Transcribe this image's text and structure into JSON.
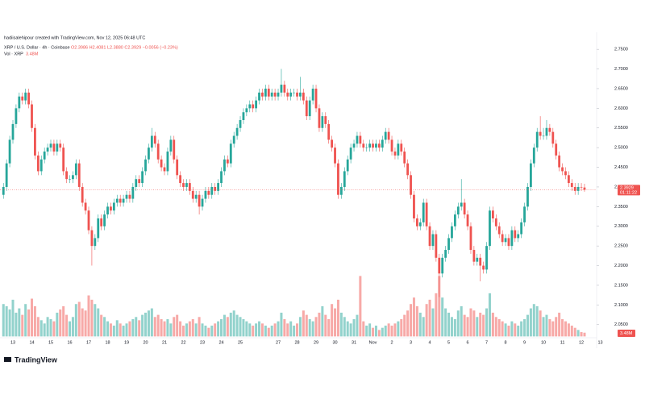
{
  "chart_data": {
    "type": "candlestick",
    "credit": "hadiisalehipour created with TradingView.com, Nov 12, 2025 06:48 UTC",
    "symbol": "XRP / U.S. Dollar · 4h · Coinbase",
    "ohlc_text": "O2.3986 H2.4081 L2.3880 C2.3929 −0.0056 (−0.23%)",
    "volume_title": "Vol · XRP",
    "volume_last_label": "3.48M",
    "last_price_label": "2.3929",
    "countdown": "01:11:22",
    "logo": "TradingView",
    "up_color": "#26a69a",
    "down_color": "#ef5350",
    "grid": false,
    "ylim": [
      2.02,
      2.77
    ],
    "yticks": [
      {
        "value": 2.05,
        "label": "2.0500"
      },
      {
        "value": 2.1,
        "label": "2.1000"
      },
      {
        "value": 2.15,
        "label": "2.1500"
      },
      {
        "value": 2.2,
        "label": "2.2000"
      },
      {
        "value": 2.25,
        "label": "2.2500"
      },
      {
        "value": 2.3,
        "label": "2.3000"
      },
      {
        "value": 2.35,
        "label": "2.3500"
      },
      {
        "value": 2.4,
        "label": "2.4000"
      },
      {
        "value": 2.45,
        "label": "2.4500"
      },
      {
        "value": 2.5,
        "label": "2.5000"
      },
      {
        "value": 2.55,
        "label": "2.5500"
      },
      {
        "value": 2.6,
        "label": "2.6000"
      },
      {
        "value": 2.65,
        "label": "2.6500"
      },
      {
        "value": 2.7,
        "label": "2.7000"
      },
      {
        "value": 2.75,
        "label": "2.7500"
      }
    ],
    "next_day_label": "13",
    "categories": [
      null,
      null,
      null,
      "13",
      null,
      null,
      null,
      null,
      null,
      "14",
      null,
      null,
      null,
      null,
      null,
      "15",
      null,
      null,
      null,
      null,
      null,
      "16",
      null,
      null,
      null,
      null,
      null,
      "17",
      null,
      null,
      null,
      null,
      null,
      "18",
      null,
      null,
      null,
      null,
      null,
      "19",
      null,
      null,
      null,
      null,
      null,
      "20",
      null,
      null,
      null,
      null,
      null,
      "21",
      null,
      null,
      null,
      null,
      null,
      "22",
      null,
      null,
      null,
      null,
      null,
      "23",
      null,
      null,
      null,
      null,
      null,
      "24",
      null,
      null,
      null,
      null,
      null,
      "25",
      null,
      null,
      null,
      null,
      null,
      null,
      null,
      null,
      null,
      null,
      null,
      "27",
      null,
      null,
      null,
      null,
      null,
      "28",
      null,
      null,
      null,
      null,
      null,
      "29",
      null,
      null,
      null,
      null,
      null,
      "30",
      null,
      null,
      null,
      null,
      null,
      "31",
      null,
      null,
      null,
      null,
      null,
      "Nov",
      null,
      null,
      null,
      null,
      null,
      "2",
      null,
      null,
      null,
      null,
      null,
      "3",
      null,
      null,
      null,
      null,
      null,
      "4",
      null,
      null,
      null,
      null,
      null,
      "5",
      null,
      null,
      null,
      null,
      null,
      "6",
      null,
      null,
      null,
      null,
      null,
      "7",
      null,
      null,
      null,
      null,
      null,
      "8",
      null,
      null,
      null,
      null,
      null,
      "9",
      null,
      null,
      null,
      null,
      null,
      "10",
      null,
      null,
      null,
      null,
      null,
      "11",
      null,
      null,
      null,
      null,
      null,
      "12",
      null
    ],
    "open": [
      2.38,
      2.4,
      2.46,
      2.52,
      2.56,
      2.6,
      2.63,
      2.62,
      2.64,
      2.61,
      2.55,
      2.48,
      2.44,
      2.47,
      2.49,
      2.5,
      2.51,
      2.49,
      2.51,
      2.5,
      2.44,
      2.42,
      2.42,
      2.43,
      2.46,
      2.4,
      2.36,
      2.34,
      2.29,
      2.25,
      2.27,
      2.32,
      2.3,
      2.33,
      2.35,
      2.34,
      2.36,
      2.37,
      2.36,
      2.37,
      2.38,
      2.37,
      2.4,
      2.42,
      2.41,
      2.44,
      2.47,
      2.5,
      2.53,
      2.51,
      2.47,
      2.45,
      2.44,
      2.49,
      2.52,
      2.47,
      2.43,
      2.41,
      2.4,
      2.41,
      2.39,
      2.37,
      2.38,
      2.35,
      2.37,
      2.39,
      2.38,
      2.4,
      2.39,
      2.41,
      2.44,
      2.47,
      2.46,
      2.51,
      2.53,
      2.55,
      2.57,
      2.59,
      2.6,
      2.61,
      2.6,
      2.62,
      2.64,
      2.63,
      2.65,
      2.63,
      2.64,
      2.63,
      2.64,
      2.66,
      2.64,
      2.63,
      2.64,
      2.64,
      2.63,
      2.64,
      2.62,
      2.58,
      2.62,
      2.65,
      2.6,
      2.55,
      2.58,
      2.56,
      2.52,
      2.5,
      2.46,
      2.38,
      2.4,
      2.44,
      2.47,
      2.5,
      2.51,
      2.53,
      2.51,
      2.5,
      2.5,
      2.51,
      2.5,
      2.51,
      2.5,
      2.52,
      2.54,
      2.52,
      2.49,
      2.48,
      2.51,
      2.49,
      2.46,
      2.43,
      2.38,
      2.32,
      2.3,
      2.31,
      2.36,
      2.3,
      2.25,
      2.28,
      2.22,
      2.18,
      2.22,
      2.24,
      2.27,
      2.3,
      2.33,
      2.35,
      2.36,
      2.33,
      2.3,
      2.24,
      2.21,
      2.22,
      2.2,
      2.19,
      2.25,
      2.34,
      2.32,
      2.3,
      2.28,
      2.26,
      2.27,
      2.25,
      2.29,
      2.27,
      2.28,
      2.31,
      2.35,
      2.4,
      2.46,
      2.5,
      2.54,
      2.53,
      2.53,
      2.55,
      2.54,
      2.51,
      2.48,
      2.45,
      2.44,
      2.43,
      2.41,
      2.4,
      2.39,
      2.4,
      2.3986
    ],
    "high": [
      2.41,
      2.47,
      2.53,
      2.57,
      2.61,
      2.64,
      2.64,
      2.65,
      2.65,
      2.62,
      2.56,
      2.49,
      2.48,
      2.5,
      2.51,
      2.52,
      2.52,
      2.52,
      2.52,
      2.51,
      2.45,
      2.43,
      2.44,
      2.47,
      2.47,
      2.41,
      2.37,
      2.35,
      2.3,
      2.28,
      2.33,
      2.33,
      2.34,
      2.36,
      2.36,
      2.37,
      2.38,
      2.38,
      2.38,
      2.39,
      2.39,
      2.41,
      2.43,
      2.43,
      2.45,
      2.48,
      2.51,
      2.55,
      2.54,
      2.52,
      2.48,
      2.46,
      2.5,
      2.53,
      2.53,
      2.48,
      2.44,
      2.42,
      2.42,
      2.42,
      2.4,
      2.39,
      2.39,
      2.38,
      2.4,
      2.4,
      2.41,
      2.41,
      2.42,
      2.45,
      2.48,
      2.48,
      2.52,
      2.54,
      2.56,
      2.58,
      2.6,
      2.61,
      2.62,
      2.62,
      2.63,
      2.65,
      2.65,
      2.66,
      2.66,
      2.65,
      2.65,
      2.65,
      2.7,
      2.67,
      2.65,
      2.65,
      2.65,
      2.65,
      2.68,
      2.65,
      2.63,
      2.63,
      2.66,
      2.66,
      2.61,
      2.59,
      2.59,
      2.57,
      2.53,
      2.51,
      2.47,
      2.41,
      2.45,
      2.48,
      2.51,
      2.52,
      2.54,
      2.54,
      2.52,
      2.51,
      2.52,
      2.52,
      2.52,
      2.52,
      2.53,
      2.55,
      2.55,
      2.53,
      2.5,
      2.52,
      2.52,
      2.5,
      2.47,
      2.44,
      2.39,
      2.33,
      2.32,
      2.37,
      2.37,
      2.31,
      2.29,
      2.29,
      2.23,
      2.23,
      2.25,
      2.28,
      2.31,
      2.34,
      2.36,
      2.42,
      2.37,
      2.34,
      2.31,
      2.25,
      2.23,
      2.23,
      2.21,
      2.26,
      2.35,
      2.35,
      2.33,
      2.31,
      2.29,
      2.28,
      2.28,
      2.3,
      2.3,
      2.29,
      2.32,
      2.36,
      2.41,
      2.47,
      2.51,
      2.55,
      2.58,
      2.55,
      2.57,
      2.56,
      2.55,
      2.52,
      2.49,
      2.46,
      2.45,
      2.44,
      2.42,
      2.41,
      2.41,
      2.41,
      2.4081
    ],
    "low": [
      2.37,
      2.39,
      2.45,
      2.51,
      2.55,
      2.59,
      2.61,
      2.61,
      2.6,
      2.54,
      2.47,
      2.43,
      2.43,
      2.46,
      2.48,
      2.49,
      2.48,
      2.48,
      2.49,
      2.43,
      2.41,
      2.41,
      2.41,
      2.42,
      2.39,
      2.35,
      2.33,
      2.28,
      2.2,
      2.24,
      2.26,
      2.29,
      2.29,
      2.32,
      2.33,
      2.33,
      2.35,
      2.35,
      2.35,
      2.36,
      2.36,
      2.36,
      2.39,
      2.4,
      2.4,
      2.43,
      2.46,
      2.49,
      2.5,
      2.46,
      2.44,
      2.43,
      2.43,
      2.48,
      2.46,
      2.42,
      2.4,
      2.39,
      2.39,
      2.38,
      2.36,
      2.36,
      2.33,
      2.34,
      2.36,
      2.37,
      2.37,
      2.38,
      2.38,
      2.4,
      2.43,
      2.45,
      2.45,
      2.5,
      2.52,
      2.54,
      2.56,
      2.58,
      2.59,
      2.59,
      2.59,
      2.61,
      2.62,
      2.62,
      2.62,
      2.62,
      2.62,
      2.62,
      2.63,
      2.63,
      2.62,
      2.62,
      2.63,
      2.62,
      2.62,
      2.61,
      2.57,
      2.57,
      2.61,
      2.59,
      2.54,
      2.54,
      2.55,
      2.51,
      2.49,
      2.45,
      2.37,
      2.37,
      2.39,
      2.43,
      2.46,
      2.49,
      2.5,
      2.5,
      2.49,
      2.49,
      2.49,
      2.49,
      2.49,
      2.49,
      2.49,
      2.51,
      2.51,
      2.48,
      2.47,
      2.47,
      2.48,
      2.45,
      2.42,
      2.37,
      2.31,
      2.29,
      2.29,
      2.3,
      2.29,
      2.24,
      2.24,
      2.21,
      2.12,
      2.17,
      2.21,
      2.23,
      2.26,
      2.29,
      2.32,
      2.34,
      2.32,
      2.29,
      2.23,
      2.2,
      2.2,
      2.16,
      2.18,
      2.18,
      2.24,
      2.31,
      2.29,
      2.27,
      2.25,
      2.25,
      2.24,
      2.24,
      2.26,
      2.26,
      2.27,
      2.3,
      2.34,
      2.39,
      2.45,
      2.49,
      2.52,
      2.52,
      2.52,
      2.53,
      2.5,
      2.47,
      2.44,
      2.43,
      2.42,
      2.4,
      2.39,
      2.38,
      2.38,
      2.39,
      2.388
    ],
    "close": [
      2.4,
      2.46,
      2.52,
      2.56,
      2.6,
      2.63,
      2.62,
      2.64,
      2.61,
      2.55,
      2.48,
      2.44,
      2.47,
      2.49,
      2.5,
      2.51,
      2.49,
      2.51,
      2.5,
      2.44,
      2.42,
      2.42,
      2.43,
      2.46,
      2.4,
      2.36,
      2.34,
      2.29,
      2.25,
      2.27,
      2.32,
      2.3,
      2.33,
      2.35,
      2.34,
      2.36,
      2.37,
      2.36,
      2.37,
      2.38,
      2.37,
      2.4,
      2.42,
      2.41,
      2.44,
      2.47,
      2.5,
      2.53,
      2.51,
      2.47,
      2.45,
      2.44,
      2.49,
      2.52,
      2.47,
      2.43,
      2.41,
      2.4,
      2.41,
      2.39,
      2.37,
      2.38,
      2.35,
      2.37,
      2.39,
      2.38,
      2.4,
      2.39,
      2.41,
      2.44,
      2.47,
      2.46,
      2.51,
      2.53,
      2.55,
      2.57,
      2.59,
      2.6,
      2.61,
      2.6,
      2.62,
      2.64,
      2.63,
      2.65,
      2.63,
      2.64,
      2.63,
      2.64,
      2.66,
      2.64,
      2.63,
      2.64,
      2.64,
      2.63,
      2.64,
      2.62,
      2.58,
      2.62,
      2.65,
      2.6,
      2.55,
      2.58,
      2.56,
      2.52,
      2.5,
      2.46,
      2.38,
      2.4,
      2.44,
      2.47,
      2.5,
      2.51,
      2.53,
      2.51,
      2.5,
      2.5,
      2.51,
      2.5,
      2.51,
      2.5,
      2.52,
      2.54,
      2.52,
      2.49,
      2.48,
      2.51,
      2.49,
      2.46,
      2.43,
      2.38,
      2.32,
      2.3,
      2.31,
      2.36,
      2.3,
      2.25,
      2.28,
      2.22,
      2.18,
      2.22,
      2.24,
      2.27,
      2.3,
      2.33,
      2.35,
      2.36,
      2.33,
      2.3,
      2.24,
      2.21,
      2.22,
      2.2,
      2.19,
      2.25,
      2.34,
      2.32,
      2.3,
      2.28,
      2.26,
      2.27,
      2.25,
      2.29,
      2.27,
      2.28,
      2.31,
      2.35,
      2.4,
      2.46,
      2.5,
      2.54,
      2.53,
      2.53,
      2.55,
      2.54,
      2.51,
      2.48,
      2.45,
      2.44,
      2.43,
      2.41,
      2.4,
      2.39,
      2.4,
      2.3986,
      2.3929
    ],
    "volume": [
      30,
      28,
      25,
      34,
      22,
      26,
      20,
      30,
      25,
      35,
      28,
      18,
      15,
      12,
      18,
      16,
      14,
      22,
      25,
      28,
      20,
      14,
      18,
      30,
      32,
      26,
      24,
      38,
      34,
      30,
      26,
      20,
      18,
      14,
      12,
      10,
      15,
      12,
      10,
      12,
      14,
      16,
      18,
      15,
      20,
      22,
      24,
      26,
      18,
      20,
      16,
      14,
      16,
      12,
      18,
      20,
      14,
      10,
      12,
      14,
      16,
      12,
      18,
      12,
      10,
      8,
      10,
      12,
      14,
      16,
      20,
      18,
      22,
      24,
      20,
      18,
      16,
      14,
      12,
      10,
      12,
      14,
      12,
      10,
      8,
      10,
      12,
      14,
      22,
      16,
      12,
      14,
      10,
      12,
      18,
      24,
      20,
      16,
      14,
      18,
      22,
      28,
      20,
      16,
      30,
      26,
      34,
      22,
      18,
      14,
      12,
      16,
      20,
      56,
      14,
      10,
      12,
      8,
      10,
      6,
      8,
      10,
      12,
      10,
      12,
      14,
      16,
      20,
      24,
      30,
      36,
      28,
      22,
      18,
      30,
      34,
      26,
      40,
      56,
      36,
      26,
      22,
      18,
      16,
      24,
      28,
      20,
      18,
      26,
      24,
      18,
      22,
      20,
      26,
      40,
      22,
      18,
      16,
      14,
      12,
      10,
      14,
      12,
      10,
      14,
      16,
      20,
      26,
      30,
      28,
      24,
      18,
      20,
      16,
      14,
      18,
      22,
      16,
      14,
      12,
      10,
      8,
      6,
      4,
      3.48
    ]
  }
}
